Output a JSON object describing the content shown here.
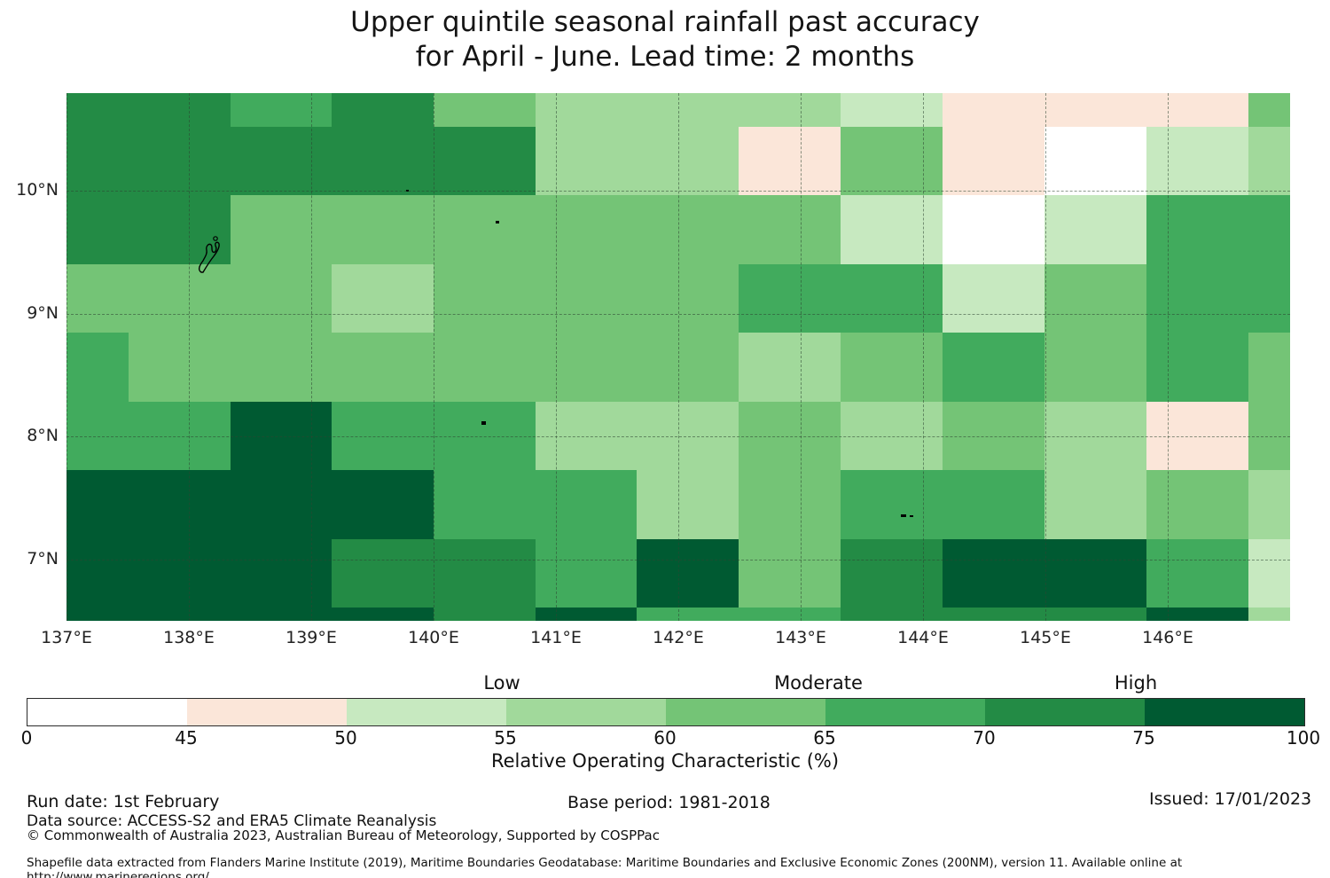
{
  "title": {
    "line1": "Upper quintile seasonal rainfall past accuracy",
    "line2": "for April - June. Lead time: 2 months"
  },
  "chart_data": {
    "type": "heatmap",
    "title": "Upper quintile seasonal rainfall past accuracy for April - June. Lead time: 2 months",
    "x_axis": {
      "ticks": [
        137,
        138,
        139,
        140,
        141,
        142,
        143,
        144,
        145,
        146
      ],
      "tick_suffix": "°E",
      "range": [
        137.0,
        147.0
      ]
    },
    "y_axis": {
      "ticks": [
        10,
        9,
        8,
        7
      ],
      "tick_suffix": "°N",
      "range": [
        6.5,
        10.8
      ]
    },
    "col_edges_lon": [
      137.0,
      137.51,
      138.34,
      139.17,
      140.0,
      140.83,
      141.66,
      142.5,
      143.33,
      144.17,
      145.0,
      145.83,
      146.67,
      147.0
    ],
    "row_edges_lat": [
      10.79,
      10.52,
      9.96,
      9.4,
      8.84,
      8.28,
      7.73,
      7.16,
      6.61,
      6.5
    ],
    "bins": [
      {
        "range": "0-45",
        "label": "ROC 0-45%",
        "color": "#ffffff"
      },
      {
        "range": "45-50",
        "label": "ROC 45-50%",
        "color": "#fbe6d9"
      },
      {
        "range": "50-55",
        "label": "ROC 50-55%",
        "color": "#c7e9c0"
      },
      {
        "range": "55-60",
        "label": "ROC 55-60%",
        "color": "#a1d99b"
      },
      {
        "range": "60-65",
        "label": "ROC 60-65%",
        "color": "#74c476"
      },
      {
        "range": "65-70",
        "label": "ROC 65-70%",
        "color": "#41ab5d"
      },
      {
        "range": "70-75",
        "label": "ROC 70-75%",
        "color": "#238b45"
      },
      {
        "range": "75-100",
        "label": "ROC 75-100%",
        "color": "#005a32"
      }
    ],
    "grid_bin_index": [
      [
        6,
        6,
        5,
        6,
        4,
        3,
        3,
        3,
        2,
        1,
        1,
        1,
        4
      ],
      [
        6,
        6,
        6,
        6,
        6,
        3,
        3,
        1,
        4,
        1,
        0,
        2,
        3
      ],
      [
        6,
        6,
        4,
        4,
        4,
        4,
        4,
        4,
        2,
        0,
        2,
        5,
        5
      ],
      [
        4,
        4,
        4,
        3,
        4,
        4,
        4,
        5,
        5,
        2,
        4,
        5,
        5
      ],
      [
        5,
        4,
        4,
        4,
        4,
        4,
        4,
        3,
        4,
        5,
        4,
        5,
        4
      ],
      [
        5,
        5,
        7,
        5,
        5,
        3,
        3,
        4,
        3,
        4,
        3,
        1,
        4
      ],
      [
        7,
        7,
        7,
        7,
        5,
        5,
        3,
        4,
        5,
        5,
        3,
        4,
        3
      ],
      [
        7,
        7,
        7,
        6,
        6,
        5,
        7,
        4,
        6,
        7,
        7,
        5,
        2
      ],
      [
        7,
        7,
        7,
        7,
        6,
        7,
        5,
        5,
        6,
        6,
        6,
        7,
        3
      ]
    ],
    "legend": {
      "low": "Low",
      "moderate": "Moderate",
      "high": "High"
    },
    "colorbar": {
      "tick_labels": [
        "0",
        "45",
        "50",
        "55",
        "60",
        "65",
        "70",
        "75",
        "100"
      ],
      "axis_label": "Relative Operating Characteristic (%)"
    },
    "grid_on": true
  },
  "footer": {
    "run_date": "Run date: 1st February",
    "data_source": "Data source: ACCESS-S2 and ERA5 Climate Reanalysis",
    "copyright": "© Commonwealth of Australia 2023, Australian Bureau of Meteorology, Supported by COSPPac",
    "base_period": "Base period: 1981-2018",
    "issued": "Issued: 17/01/2023",
    "shapefile_note": "Shapefile data extracted from Flanders Marine Institute (2019), Maritime Boundaries Geodatabase: Maritime Boundaries and Exclusive Economic Zones (200NM), version 11. Available online at http://www.marineregions.org/."
  }
}
